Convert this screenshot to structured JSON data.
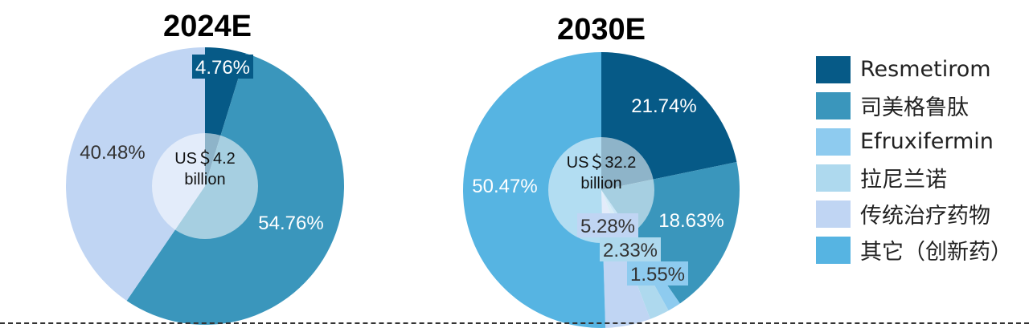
{
  "chart_data": [
    {
      "type": "pie",
      "title": "2024E",
      "center_label": [
        "US＄4.2",
        "billion"
      ],
      "slices": [
        {
          "name": "Resmetirom",
          "value": 4.76,
          "label": "4.76%"
        },
        {
          "name": "司美格鲁肽",
          "value": 54.76,
          "label": "54.76%"
        },
        {
          "name": "传统治疗药物",
          "value": 40.48,
          "label": "40.48%"
        }
      ]
    },
    {
      "type": "pie",
      "title": "2030E",
      "center_label": [
        "US＄32.2",
        "billion"
      ],
      "slices": [
        {
          "name": "Resmetirom",
          "value": 21.74,
          "label": "21.74%"
        },
        {
          "name": "司美格鲁肽",
          "value": 18.63,
          "label": "18.63%"
        },
        {
          "name": "Efruxifermin",
          "value": 1.55,
          "label": "1.55%"
        },
        {
          "name": "拉尼兰诺",
          "value": 2.33,
          "label": "2.33%"
        },
        {
          "name": "传统治疗药物",
          "value": 5.28,
          "label": "5.28%"
        },
        {
          "name": "其它（创新药）",
          "value": 50.47,
          "label": "50.47%"
        }
      ]
    }
  ],
  "legend": [
    {
      "name": "Resmetirom",
      "color": "#065A87"
    },
    {
      "name": "司美格鲁肽",
      "color": "#3A96BC"
    },
    {
      "name": "Efruxifermin",
      "color": "#8ECBEF"
    },
    {
      "name": "拉尼兰诺",
      "color": "#AED9EE"
    },
    {
      "name": "传统治疗药物",
      "color": "#C0D5F3"
    },
    {
      "name": "其它（创新药）",
      "color": "#56B4E2"
    }
  ]
}
